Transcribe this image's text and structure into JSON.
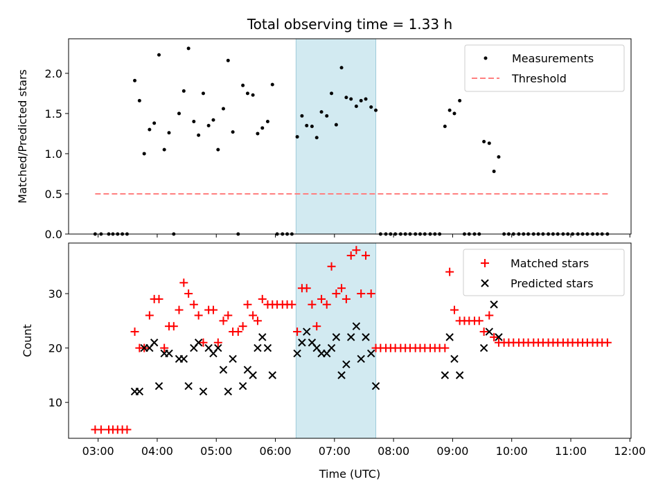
{
  "title": "Total observing time = 1.33 h",
  "x_axis": {
    "label": "Time (UTC)",
    "tick_hours": [
      3,
      4,
      5,
      6,
      7,
      8,
      9,
      10,
      11,
      12
    ],
    "tick_labels": [
      "03:00",
      "04:00",
      "05:00",
      "06:00",
      "07:00",
      "08:00",
      "09:00",
      "10:00",
      "11:00",
      "12:00"
    ]
  },
  "chart_data": [
    {
      "type": "scatter",
      "panel": "top",
      "ylabel": "Matched/Predicted stars",
      "xlim_hours": [
        2.5,
        12.02
      ],
      "ylim": [
        0,
        2.43
      ],
      "yticks": [
        0.0,
        0.5,
        1.0,
        1.5,
        2.0
      ],
      "ytick_labels": [
        "0.0",
        "0.5",
        "1.0",
        "1.5",
        "2.0"
      ],
      "legend": {
        "placement": "upper right",
        "entries": [
          "Measurements",
          "Threshold"
        ]
      },
      "shaded_region_hours": [
        6.35,
        7.7
      ],
      "threshold": {
        "name": "Threshold",
        "y": 0.5,
        "x_from_hours": 2.95,
        "x_to_hours": 11.63,
        "color": "#ff7f7f",
        "style": "dashed"
      },
      "series": [
        {
          "name": "Measurements",
          "color": "#000000",
          "marker": "dot",
          "points_hours": [
            [
              2.95,
              0
            ],
            [
              3.05,
              0
            ],
            [
              3.18,
              0
            ],
            [
              3.25,
              0
            ],
            [
              3.33,
              0
            ],
            [
              3.41,
              0
            ],
            [
              3.49,
              0
            ],
            [
              3.62,
              1.91
            ],
            [
              3.7,
              1.66
            ],
            [
              3.78,
              1.0
            ],
            [
              3.87,
              1.3
            ],
            [
              3.95,
              1.38
            ],
            [
              4.03,
              2.23
            ],
            [
              4.12,
              1.05
            ],
            [
              4.2,
              1.26
            ],
            [
              4.28,
              0
            ],
            [
              4.37,
              1.5
            ],
            [
              4.45,
              1.78
            ],
            [
              4.53,
              2.31
            ],
            [
              4.62,
              1.4
            ],
            [
              4.7,
              1.23
            ],
            [
              4.78,
              1.75
            ],
            [
              4.87,
              1.35
            ],
            [
              4.95,
              1.42
            ],
            [
              5.03,
              1.05
            ],
            [
              5.12,
              1.56
            ],
            [
              5.2,
              2.16
            ],
            [
              5.28,
              1.27
            ],
            [
              5.37,
              0
            ],
            [
              5.45,
              1.85
            ],
            [
              5.53,
              1.75
            ],
            [
              5.62,
              1.73
            ],
            [
              5.7,
              1.25
            ],
            [
              5.78,
              1.32
            ],
            [
              5.87,
              1.4
            ],
            [
              5.95,
              1.86
            ],
            [
              6.03,
              0
            ],
            [
              6.12,
              0
            ],
            [
              6.2,
              0
            ],
            [
              6.28,
              0
            ],
            [
              6.37,
              1.21
            ],
            [
              6.45,
              1.47
            ],
            [
              6.53,
              1.35
            ],
            [
              6.62,
              1.34
            ],
            [
              6.7,
              1.2
            ],
            [
              6.78,
              1.52
            ],
            [
              6.87,
              1.47
            ],
            [
              6.95,
              1.75
            ],
            [
              7.03,
              1.36
            ],
            [
              7.12,
              2.07
            ],
            [
              7.2,
              1.7
            ],
            [
              7.28,
              1.68
            ],
            [
              7.37,
              1.59
            ],
            [
              7.45,
              1.66
            ],
            [
              7.53,
              1.68
            ],
            [
              7.62,
              1.58
            ],
            [
              7.7,
              1.54
            ],
            [
              7.78,
              0
            ],
            [
              7.87,
              0
            ],
            [
              7.95,
              0
            ],
            [
              8.03,
              0
            ],
            [
              8.12,
              0
            ],
            [
              8.2,
              0
            ],
            [
              8.28,
              0
            ],
            [
              8.37,
              0
            ],
            [
              8.45,
              0
            ],
            [
              8.53,
              0
            ],
            [
              8.62,
              0
            ],
            [
              8.7,
              0
            ],
            [
              8.78,
              0
            ],
            [
              8.87,
              1.34
            ],
            [
              8.95,
              1.54
            ],
            [
              9.03,
              1.5
            ],
            [
              9.12,
              1.66
            ],
            [
              9.2,
              0
            ],
            [
              9.28,
              0
            ],
            [
              9.37,
              0
            ],
            [
              9.45,
              0
            ],
            [
              9.53,
              1.15
            ],
            [
              9.62,
              1.13
            ],
            [
              9.7,
              0.78
            ],
            [
              9.78,
              0.96
            ],
            [
              9.87,
              0
            ],
            [
              9.95,
              0
            ],
            [
              10.03,
              0
            ],
            [
              10.12,
              0
            ],
            [
              10.2,
              0
            ],
            [
              10.28,
              0
            ],
            [
              10.37,
              0
            ],
            [
              10.45,
              0
            ],
            [
              10.53,
              0
            ],
            [
              10.62,
              0
            ],
            [
              10.7,
              0
            ],
            [
              10.78,
              0
            ],
            [
              10.87,
              0
            ],
            [
              10.95,
              0
            ],
            [
              11.03,
              0
            ],
            [
              11.12,
              0
            ],
            [
              11.2,
              0
            ],
            [
              11.28,
              0
            ],
            [
              11.37,
              0
            ],
            [
              11.45,
              0
            ],
            [
              11.53,
              0
            ],
            [
              11.62,
              0
            ]
          ]
        }
      ]
    },
    {
      "type": "scatter",
      "panel": "bottom",
      "ylabel": "Count",
      "xlabel": "Time (UTC)",
      "xlim_hours": [
        2.5,
        12.02
      ],
      "ylim": [
        3.4,
        39.3
      ],
      "yticks": [
        10,
        20,
        30
      ],
      "ytick_labels": [
        "10",
        "20",
        "30"
      ],
      "legend": {
        "placement": "upper right",
        "entries": [
          "Matched stars",
          "Predicted stars"
        ]
      },
      "shaded_region_hours": [
        6.35,
        7.7
      ],
      "series": [
        {
          "name": "Matched stars",
          "color": "#ff0000",
          "marker": "plus",
          "points_hours": [
            [
              2.95,
              5
            ],
            [
              3.05,
              5
            ],
            [
              3.18,
              5
            ],
            [
              3.25,
              5
            ],
            [
              3.33,
              5
            ],
            [
              3.41,
              5
            ],
            [
              3.49,
              5
            ],
            [
              3.62,
              23
            ],
            [
              3.7,
              20
            ],
            [
              3.78,
              20
            ],
            [
              3.87,
              26
            ],
            [
              3.95,
              29
            ],
            [
              4.03,
              29
            ],
            [
              4.12,
              20
            ],
            [
              4.2,
              24
            ],
            [
              4.28,
              24
            ],
            [
              4.37,
              27
            ],
            [
              4.45,
              32
            ],
            [
              4.53,
              30
            ],
            [
              4.62,
              28
            ],
            [
              4.7,
              26
            ],
            [
              4.78,
              21
            ],
            [
              4.87,
              27
            ],
            [
              4.95,
              27
            ],
            [
              5.03,
              21
            ],
            [
              5.12,
              25
            ],
            [
              5.2,
              26
            ],
            [
              5.28,
              23
            ],
            [
              5.37,
              23
            ],
            [
              5.45,
              24
            ],
            [
              5.53,
              28
            ],
            [
              5.62,
              26
            ],
            [
              5.7,
              25
            ],
            [
              5.78,
              29
            ],
            [
              5.87,
              28
            ],
            [
              5.95,
              28
            ],
            [
              6.03,
              28
            ],
            [
              6.12,
              28
            ],
            [
              6.2,
              28
            ],
            [
              6.28,
              28
            ],
            [
              6.37,
              23
            ],
            [
              6.45,
              31
            ],
            [
              6.53,
              31
            ],
            [
              6.62,
              28
            ],
            [
              6.7,
              24
            ],
            [
              6.78,
              29
            ],
            [
              6.87,
              28
            ],
            [
              6.95,
              35
            ],
            [
              7.03,
              30
            ],
            [
              7.12,
              31
            ],
            [
              7.2,
              29
            ],
            [
              7.28,
              37
            ],
            [
              7.37,
              38
            ],
            [
              7.45,
              30
            ],
            [
              7.53,
              37
            ],
            [
              7.62,
              30
            ],
            [
              7.7,
              20
            ],
            [
              7.78,
              20
            ],
            [
              7.87,
              20
            ],
            [
              7.95,
              20
            ],
            [
              8.03,
              20
            ],
            [
              8.12,
              20
            ],
            [
              8.2,
              20
            ],
            [
              8.28,
              20
            ],
            [
              8.37,
              20
            ],
            [
              8.45,
              20
            ],
            [
              8.53,
              20
            ],
            [
              8.62,
              20
            ],
            [
              8.7,
              20
            ],
            [
              8.78,
              20
            ],
            [
              8.87,
              20
            ],
            [
              8.95,
              34
            ],
            [
              9.03,
              27
            ],
            [
              9.12,
              25
            ],
            [
              9.2,
              25
            ],
            [
              9.28,
              25
            ],
            [
              9.37,
              25
            ],
            [
              9.45,
              25
            ],
            [
              9.53,
              23
            ],
            [
              9.62,
              26
            ],
            [
              9.7,
              22
            ],
            [
              9.78,
              21
            ],
            [
              9.87,
              21
            ],
            [
              9.95,
              21
            ],
            [
              10.03,
              21
            ],
            [
              10.12,
              21
            ],
            [
              10.2,
              21
            ],
            [
              10.28,
              21
            ],
            [
              10.37,
              21
            ],
            [
              10.45,
              21
            ],
            [
              10.53,
              21
            ],
            [
              10.62,
              21
            ],
            [
              10.7,
              21
            ],
            [
              10.78,
              21
            ],
            [
              10.87,
              21
            ],
            [
              10.95,
              21
            ],
            [
              11.03,
              21
            ],
            [
              11.12,
              21
            ],
            [
              11.2,
              21
            ],
            [
              11.28,
              21
            ],
            [
              11.37,
              21
            ],
            [
              11.45,
              21
            ],
            [
              11.53,
              21
            ],
            [
              11.62,
              21
            ]
          ]
        },
        {
          "name": "Predicted stars",
          "color": "#000000",
          "marker": "x",
          "points_hours": [
            [
              3.62,
              12
            ],
            [
              3.7,
              12
            ],
            [
              3.78,
              20
            ],
            [
              3.87,
              20
            ],
            [
              3.95,
              21
            ],
            [
              4.03,
              13
            ],
            [
              4.12,
              19
            ],
            [
              4.2,
              19
            ],
            [
              4.37,
              18
            ],
            [
              4.45,
              18
            ],
            [
              4.53,
              13
            ],
            [
              4.62,
              20
            ],
            [
              4.7,
              21
            ],
            [
              4.78,
              12
            ],
            [
              4.87,
              20
            ],
            [
              4.95,
              19
            ],
            [
              5.03,
              20
            ],
            [
              5.12,
              16
            ],
            [
              5.2,
              12
            ],
            [
              5.28,
              18
            ],
            [
              5.45,
              13
            ],
            [
              5.53,
              16
            ],
            [
              5.62,
              15
            ],
            [
              5.7,
              20
            ],
            [
              5.78,
              22
            ],
            [
              5.87,
              20
            ],
            [
              5.95,
              15
            ],
            [
              6.37,
              19
            ],
            [
              6.45,
              21
            ],
            [
              6.53,
              23
            ],
            [
              6.62,
              21
            ],
            [
              6.7,
              20
            ],
            [
              6.78,
              19
            ],
            [
              6.87,
              19
            ],
            [
              6.95,
              20
            ],
            [
              7.03,
              22
            ],
            [
              7.12,
              15
            ],
            [
              7.2,
              17
            ],
            [
              7.28,
              22
            ],
            [
              7.37,
              24
            ],
            [
              7.45,
              18
            ],
            [
              7.53,
              22
            ],
            [
              7.62,
              19
            ],
            [
              7.7,
              13
            ],
            [
              8.87,
              15
            ],
            [
              8.95,
              22
            ],
            [
              9.03,
              18
            ],
            [
              9.12,
              15
            ],
            [
              9.53,
              20
            ],
            [
              9.62,
              23
            ],
            [
              9.7,
              28
            ],
            [
              9.78,
              22
            ]
          ]
        }
      ]
    }
  ]
}
